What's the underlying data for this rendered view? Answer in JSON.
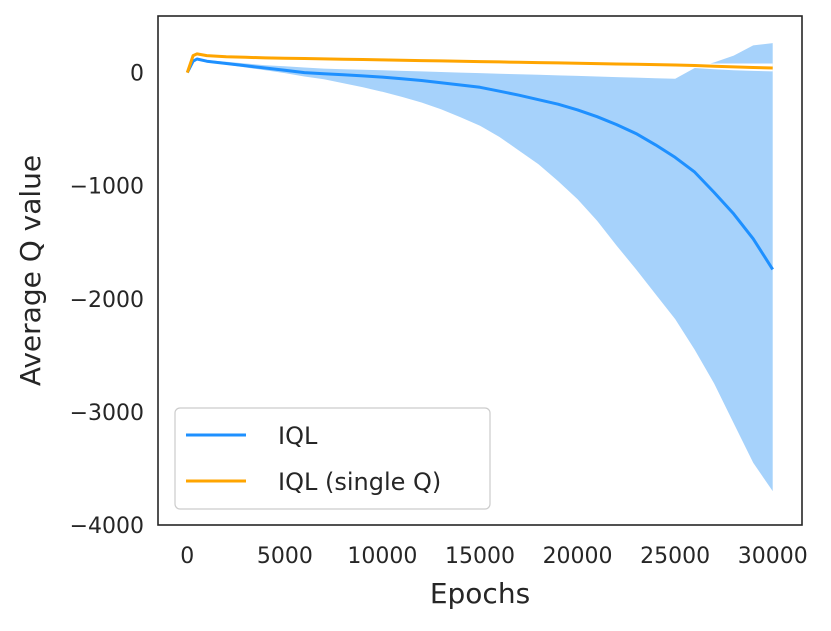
{
  "chart_data": {
    "type": "line",
    "title": "",
    "xlabel": "Epochs",
    "ylabel": "Average Q value",
    "xlim": [
      -1500,
      31500
    ],
    "ylim": [
      -4000,
      500
    ],
    "xticks": [
      0,
      5000,
      10000,
      15000,
      20000,
      25000,
      30000
    ],
    "xtick_labels": [
      "0",
      "5000",
      "10000",
      "15000",
      "20000",
      "25000",
      "30000"
    ],
    "yticks": [
      0,
      -1000,
      -2000,
      -3000,
      -4000
    ],
    "ytick_labels": [
      "0",
      "−1000",
      "−2000",
      "−3000",
      "−4000"
    ],
    "grid": false,
    "legend": {
      "placement": "lower-left"
    },
    "series": [
      {
        "name": "IQL",
        "color": "#1e90ff",
        "band_color": "#a6d2fb",
        "x": [
          0,
          300,
          500,
          1000,
          2000,
          3000,
          4000,
          5000,
          6000,
          7000,
          8000,
          9000,
          10000,
          11000,
          12000,
          13000,
          14000,
          15000,
          16000,
          17000,
          18000,
          19000,
          20000,
          21000,
          22000,
          23000,
          24000,
          25000,
          26000,
          27000,
          28000,
          29000,
          30000
        ],
        "values": [
          0,
          100,
          120,
          100,
          80,
          60,
          40,
          20,
          0,
          -10,
          -20,
          -30,
          -40,
          -55,
          -70,
          -90,
          -110,
          -130,
          -165,
          -200,
          -240,
          -280,
          -330,
          -390,
          -460,
          -540,
          -640,
          -750,
          -880,
          -1060,
          -1250,
          -1470,
          -1740
        ],
        "lower": [
          0,
          95,
          110,
          90,
          70,
          45,
          20,
          -5,
          -35,
          -60,
          -95,
          -130,
          -170,
          -215,
          -265,
          -325,
          -395,
          -470,
          -570,
          -690,
          -810,
          -960,
          -1120,
          -1310,
          -1530,
          -1740,
          -1960,
          -2180,
          -2450,
          -2750,
          -3100,
          -3450,
          -3700
        ],
        "upper": [
          0,
          105,
          130,
          110,
          95,
          80,
          65,
          55,
          45,
          35,
          30,
          25,
          20,
          15,
          10,
          5,
          0,
          -5,
          -10,
          -15,
          -20,
          -25,
          -30,
          -35,
          -40,
          -45,
          -50,
          -55,
          40,
          90,
          150,
          240,
          260
        ]
      },
      {
        "name": "IQL (single Q)",
        "color": "#ffa500",
        "band_color": "#ffffff",
        "x": [
          0,
          300,
          500,
          1000,
          2000,
          3000,
          4000,
          5000,
          6000,
          7000,
          8000,
          9000,
          10000,
          11000,
          12000,
          13000,
          14000,
          15000,
          16000,
          17000,
          18000,
          19000,
          20000,
          21000,
          22000,
          23000,
          24000,
          25000,
          26000,
          27000,
          28000,
          29000,
          30000
        ],
        "values": [
          0,
          150,
          165,
          150,
          140,
          135,
          130,
          127,
          124,
          121,
          118,
          115,
          112,
          109,
          106,
          103,
          100,
          97,
          94,
          91,
          88,
          85,
          82,
          79,
          76,
          73,
          70,
          67,
          62,
          56,
          50,
          45,
          40
        ],
        "lower": [
          0,
          140,
          155,
          140,
          130,
          125,
          120,
          117,
          114,
          111,
          108,
          105,
          102,
          99,
          96,
          93,
          90,
          87,
          84,
          81,
          78,
          75,
          72,
          69,
          66,
          63,
          60,
          57,
          40,
          30,
          20,
          15,
          10
        ],
        "upper": [
          0,
          160,
          175,
          160,
          150,
          145,
          140,
          137,
          134,
          131,
          128,
          125,
          122,
          119,
          116,
          113,
          110,
          107,
          104,
          101,
          98,
          95,
          92,
          89,
          86,
          83,
          80,
          77,
          80,
          80,
          80,
          80,
          80
        ]
      }
    ]
  }
}
